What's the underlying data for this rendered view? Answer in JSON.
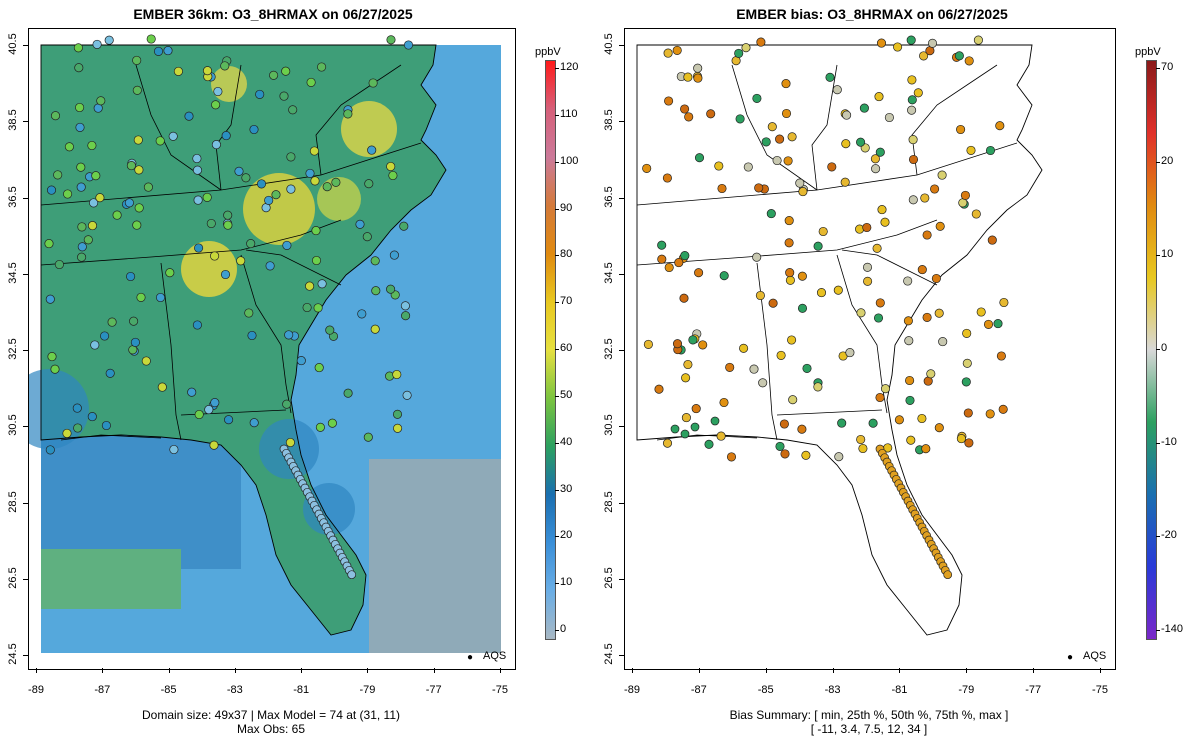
{
  "left_panel": {
    "title": "EMBER 36km: O3_8HRMAX on 06/27/2025",
    "legend_label": "AQS",
    "footer_line1": "Domain size: 49x37 | Max Model = 74 at (31, 11)",
    "footer_line2": "Max Obs: 65",
    "colorbar": {
      "unit": "ppbV",
      "ticks": [
        "120",
        "110",
        "100",
        "90",
        "80",
        "70",
        "60",
        "50",
        "40",
        "30",
        "20",
        "10",
        "0"
      ],
      "colors": [
        "#ff1a1a",
        "#d6607a",
        "#cc7a9a",
        "#d47a3a",
        "#e08a10",
        "#e8c820",
        "#e6e040",
        "#7cc440",
        "#2ca060",
        "#1a6fb0",
        "#3a8fd8",
        "#6aaee6",
        "#a8b8c4"
      ]
    },
    "x_ticks": [
      "-89",
      "-87",
      "-85",
      "-83",
      "-81",
      "-79",
      "-77",
      "-75"
    ],
    "y_ticks": [
      "40.5",
      "38.5",
      "36.5",
      "34.5",
      "32.5",
      "30.5",
      "28.5",
      "26.5",
      "24.5"
    ]
  },
  "right_panel": {
    "title": "EMBER bias: O3_8HRMAX on 06/27/2025",
    "legend_label": "AQS",
    "footer_line1": "Bias Summary: [ min, 25th %, 50th %, 75th %, max ]",
    "footer_line2": "[ -11,   3.4,   7.5,   12,   34 ]",
    "colorbar": {
      "unit": "ppbV",
      "ticks": [
        "70",
        "20",
        "10",
        "0",
        "-10",
        "-20",
        "-140"
      ],
      "colors": [
        "#8b1a1a",
        "#e0302a",
        "#e08a10",
        "#e8c820",
        "#d8d8d8",
        "#2ca060",
        "#1a6fb0",
        "#2a3ad8",
        "#7a28c8"
      ]
    },
    "x_ticks": [
      "-89",
      "-87",
      "-85",
      "-83",
      "-81",
      "-79",
      "-77",
      "-75"
    ],
    "y_ticks": [
      "40.5",
      "38.5",
      "36.5",
      "34.5",
      "32.5",
      "30.5",
      "28.5",
      "26.5",
      "24.5"
    ]
  }
}
